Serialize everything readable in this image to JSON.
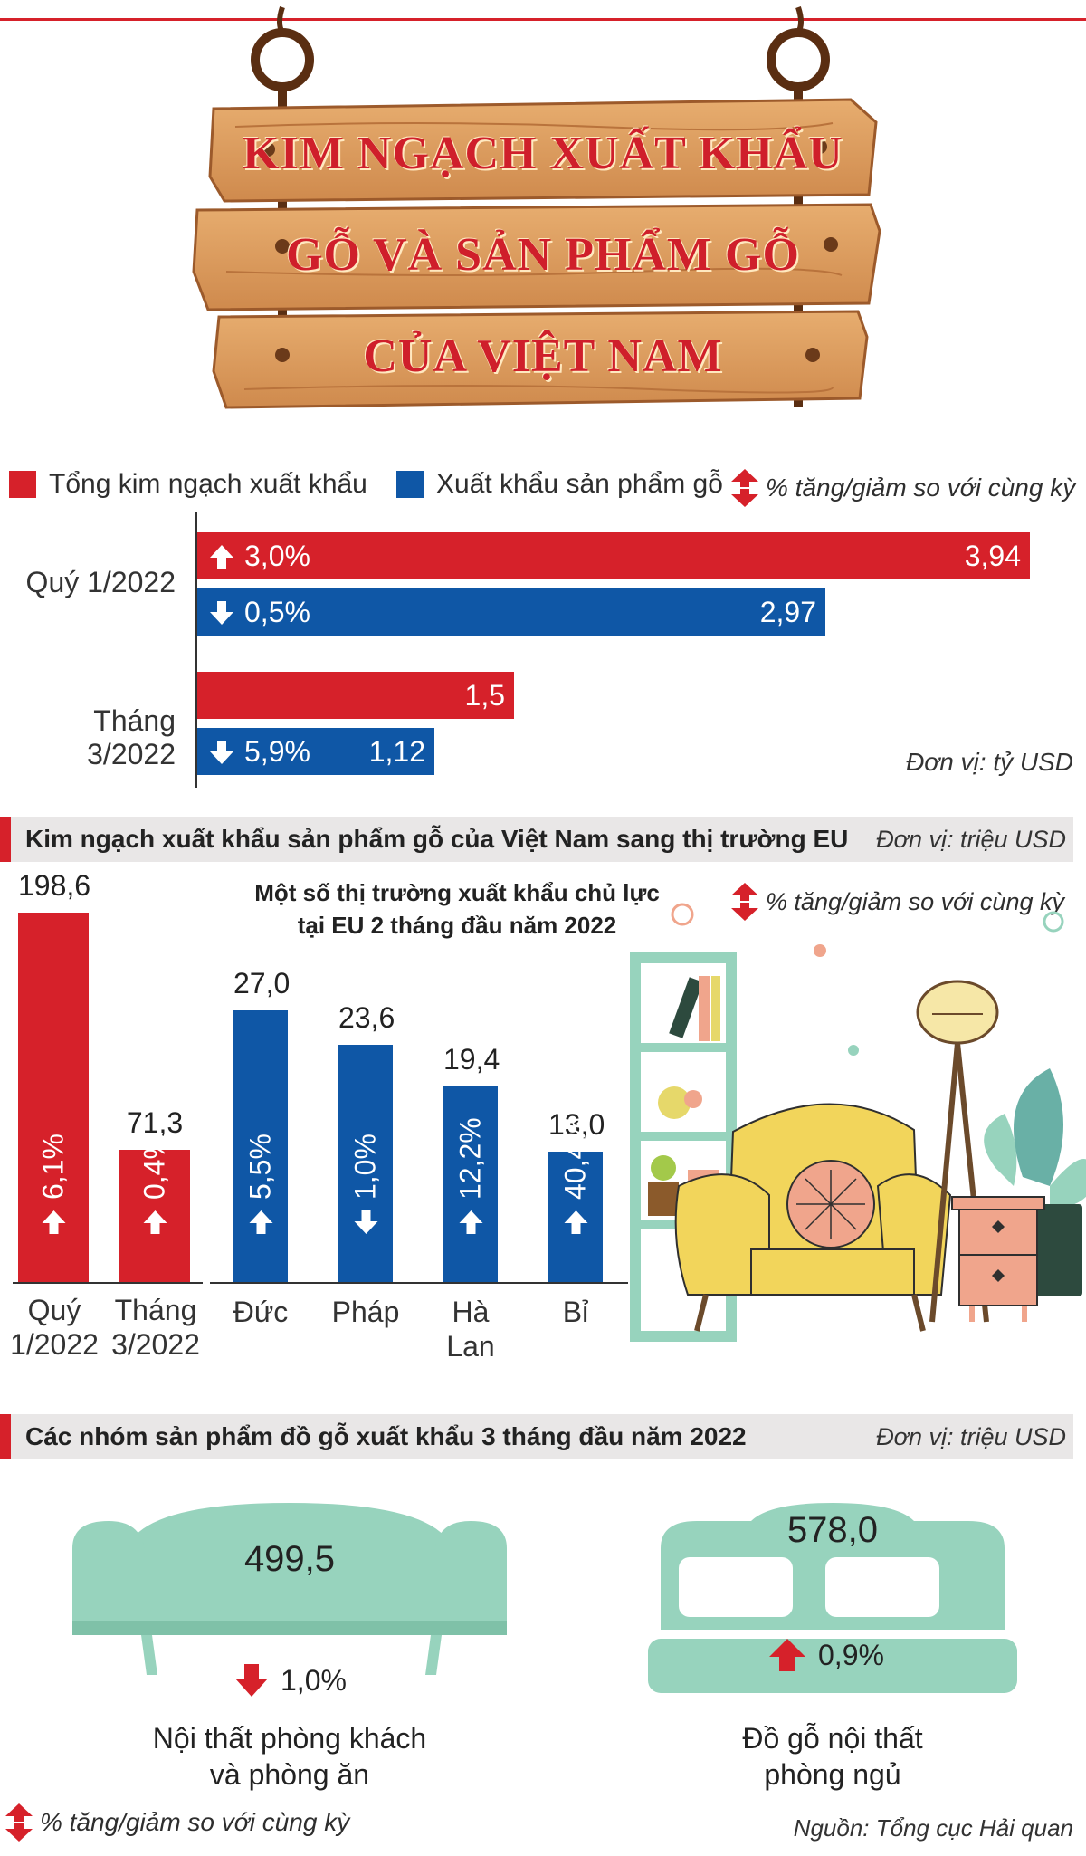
{
  "title": {
    "line1": "KIM NGẠCH XUẤT KHẨU",
    "line2": "GỖ VÀ SẢN PHẨM GỖ",
    "line3": "CỦA VIỆT NAM"
  },
  "legend": {
    "total": "Tổng kim ngạch xuất khẩu",
    "wood": "Xuất khẩu sản phẩm gỗ",
    "change": "% tăng/giảm so với cùng kỳ"
  },
  "colors": {
    "red": "#d6212a",
    "blue": "#0f57a6",
    "mint": "#97d3bd"
  },
  "chart_data": [
    {
      "type": "bar",
      "orientation": "horizontal",
      "unit": "Đơn vị: tỷ USD",
      "categories": [
        "Quý 1/2022",
        "Tháng 3/2022"
      ],
      "series": [
        {
          "name": "Tổng kim ngạch xuất khẩu",
          "values": [
            3.94,
            1.5
          ],
          "labels": [
            "3,94",
            "1,5"
          ],
          "changes": [
            "3,0%",
            ""
          ],
          "directions": [
            "up",
            ""
          ]
        },
        {
          "name": "Xuất khẩu sản phẩm gỗ",
          "values": [
            2.97,
            1.12
          ],
          "labels": [
            "2,97",
            "1,12"
          ],
          "changes": [
            "0,5%",
            "5,9%"
          ],
          "directions": [
            "down",
            "down"
          ]
        }
      ]
    },
    {
      "type": "bar",
      "title": "Kim ngạch xuất khẩu sản phẩm gỗ của Việt Nam sang thị trường EU",
      "unit": "Đơn vị: triệu USD",
      "categories": [
        "Quý 1/2022",
        "Tháng 3/2022"
      ],
      "category_lines": [
        [
          "Quý",
          "1/2022"
        ],
        [
          "Tháng",
          "3/2022"
        ]
      ],
      "values": [
        198.6,
        71.3
      ],
      "labels": [
        "198,6",
        "71,3"
      ],
      "changes": [
        "6,1%",
        "0,4%"
      ],
      "directions": [
        "up",
        "up"
      ]
    },
    {
      "type": "bar",
      "title": "Một số thị trường xuất khẩu chủ lực tại EU 2 tháng đầu năm 2022",
      "title_lines": [
        "Một số thị trường xuất khẩu chủ lực",
        "tại EU 2 tháng đầu năm 2022"
      ],
      "categories": [
        "Đức",
        "Pháp",
        "Hà Lan",
        "Bỉ"
      ],
      "values": [
        27.0,
        23.6,
        19.4,
        13.0
      ],
      "labels": [
        "27,0",
        "23,6",
        "19,4",
        "13,0"
      ],
      "changes": [
        "5,5%",
        "1,0%",
        "12,2%",
        "40,4%"
      ],
      "directions": [
        "up",
        "down",
        "up",
        "up"
      ],
      "legend": "% tăng/giảm so với cùng kỳ"
    },
    {
      "type": "table",
      "title": "Các nhóm sản phẩm đồ gỗ xuất khẩu 3 tháng đầu năm 2022",
      "unit": "Đơn vị: triệu USD",
      "rows": [
        {
          "name_lines": [
            "Nội thất phòng khách",
            "và phòng ăn"
          ],
          "value": "499,5",
          "change": "1,0%",
          "direction": "down"
        },
        {
          "name_lines": [
            "Đồ gỗ nội thất",
            "phòng ngủ"
          ],
          "value": "578,0",
          "change": "0,9%",
          "direction": "up"
        }
      ]
    }
  ],
  "footer": {
    "legend": "% tăng/giảm so với cùng kỳ",
    "source": "Nguồn: Tổng cục Hải quan"
  }
}
